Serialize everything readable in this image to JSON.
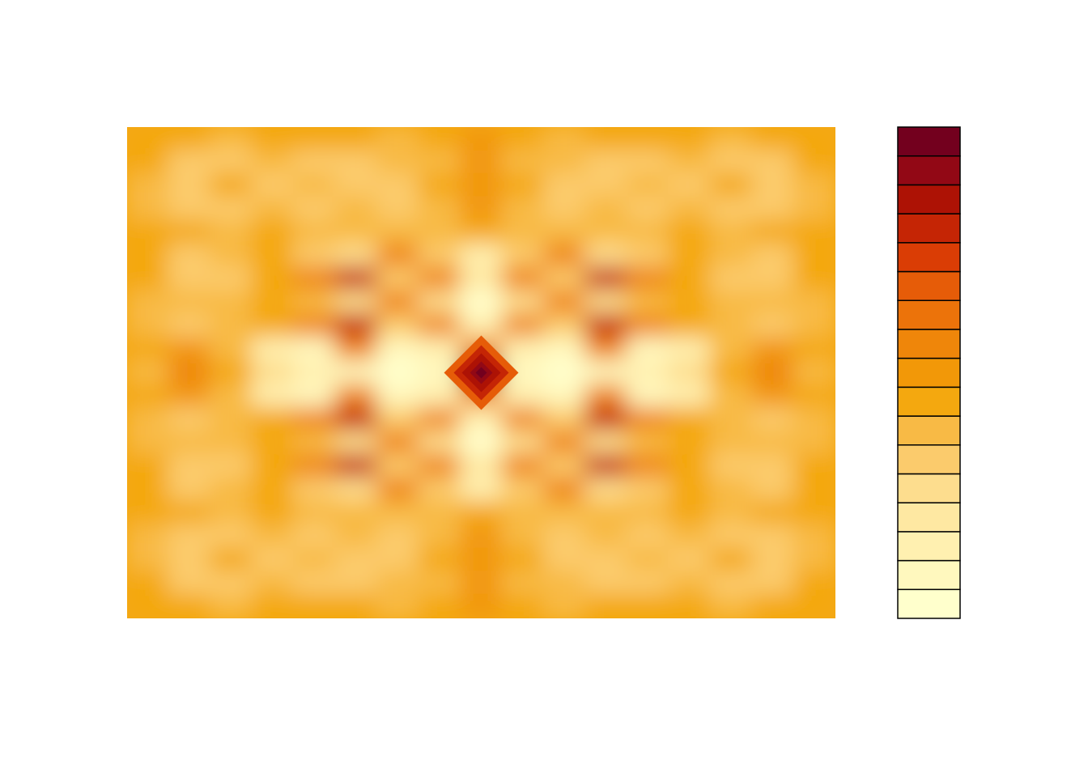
{
  "chart_data": {
    "type": "heatmap",
    "title": "",
    "xlabel": "",
    "ylabel": "",
    "axes_shown": false,
    "grid": false,
    "legend": "colorbar-right",
    "colorbar_tick_labels_shown": false,
    "center_value": "maximum",
    "symmetry": "fourfold",
    "palette": [
      "#FFFFCC",
      "#FFF8BE",
      "#FFF0B0",
      "#FEE8A2",
      "#FDDD8E",
      "#FBCB6C",
      "#F8BA45",
      "#F4A80F",
      "#F29808",
      "#EF860A",
      "#EC730A",
      "#E65C08",
      "#DA3D05",
      "#C52505",
      "#AD1205",
      "#920815",
      "#73001E"
    ],
    "field_levels": [
      [
        7,
        7,
        6,
        7,
        7,
        7,
        6,
        7,
        8,
        7,
        6,
        7,
        7,
        7,
        6,
        7,
        7
      ],
      [
        7,
        5,
        5,
        6,
        5,
        5,
        6,
        6,
        8,
        6,
        6,
        5,
        5,
        6,
        5,
        5,
        7
      ],
      [
        6,
        5,
        7,
        5,
        6,
        5,
        5,
        7,
        8,
        7,
        5,
        5,
        6,
        5,
        7,
        5,
        6
      ],
      [
        6,
        5,
        5,
        6,
        5,
        6,
        5,
        6,
        8,
        6,
        5,
        6,
        5,
        6,
        5,
        5,
        6
      ],
      [
        7,
        7,
        6,
        7,
        6,
        6,
        6,
        6,
        7,
        6,
        6,
        6,
        6,
        7,
        6,
        7,
        7
      ],
      [
        7,
        5,
        6,
        7,
        5,
        4,
        9,
        5,
        2,
        5,
        9,
        4,
        5,
        7,
        6,
        5,
        7
      ],
      [
        7,
        5,
        5,
        7,
        9,
        13,
        5,
        9,
        3,
        9,
        5,
        13,
        9,
        7,
        5,
        5,
        7
      ],
      [
        6,
        6,
        6,
        7,
        6,
        4,
        9,
        4,
        0,
        4,
        9,
        4,
        6,
        7,
        6,
        6,
        6
      ],
      [
        6,
        5,
        6,
        7,
        9,
        13,
        5,
        9,
        2,
        9,
        5,
        13,
        9,
        7,
        6,
        5,
        6
      ],
      [
        7,
        8,
        6,
        2,
        1,
        9,
        1,
        2,
        9,
        2,
        1,
        9,
        1,
        2,
        6,
        8,
        7
      ],
      [
        6,
        9,
        7,
        4,
        2,
        1,
        0,
        1,
        16,
        1,
        0,
        1,
        2,
        4,
        7,
        9,
        6
      ],
      [
        7,
        8,
        6,
        2,
        1,
        9,
        1,
        2,
        9,
        2,
        1,
        9,
        1,
        2,
        6,
        8,
        7
      ],
      [
        6,
        5,
        6,
        7,
        9,
        13,
        5,
        9,
        2,
        9,
        5,
        13,
        9,
        7,
        6,
        5,
        6
      ],
      [
        6,
        6,
        6,
        7,
        6,
        4,
        9,
        4,
        0,
        4,
        9,
        4,
        6,
        7,
        6,
        6,
        6
      ],
      [
        7,
        5,
        5,
        7,
        9,
        13,
        5,
        9,
        3,
        9,
        5,
        13,
        9,
        7,
        5,
        5,
        7
      ],
      [
        7,
        5,
        6,
        7,
        5,
        4,
        9,
        5,
        2,
        5,
        9,
        4,
        5,
        7,
        6,
        5,
        7
      ],
      [
        7,
        7,
        6,
        7,
        6,
        6,
        6,
        6,
        7,
        6,
        6,
        6,
        6,
        7,
        6,
        7,
        7
      ],
      [
        6,
        5,
        5,
        6,
        5,
        6,
        5,
        6,
        8,
        6,
        5,
        6,
        5,
        6,
        5,
        5,
        6
      ],
      [
        6,
        5,
        7,
        5,
        6,
        5,
        5,
        7,
        8,
        7,
        5,
        5,
        6,
        5,
        7,
        5,
        6
      ],
      [
        7,
        5,
        5,
        6,
        5,
        5,
        6,
        6,
        8,
        6,
        6,
        5,
        5,
        6,
        5,
        5,
        7
      ],
      [
        7,
        7,
        6,
        7,
        7,
        7,
        6,
        7,
        8,
        7,
        6,
        7,
        7,
        7,
        6,
        7,
        7
      ]
    ]
  }
}
